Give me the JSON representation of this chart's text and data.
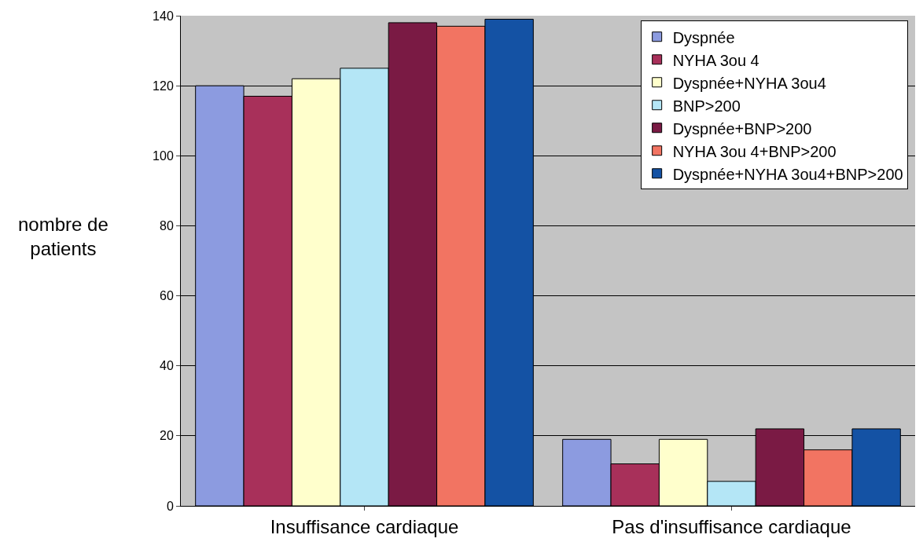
{
  "chart_data": {
    "type": "bar",
    "ylabel": "nombre de patients",
    "categories": [
      "Insuffisance cardiaque",
      "Pas d'insuffisance cardiaque"
    ],
    "series": [
      {
        "name": "Dyspnée",
        "color": "#8c9be0",
        "values": [
          120,
          19
        ]
      },
      {
        "name": "NYHA 3ou 4",
        "color": "#a8305a",
        "values": [
          117,
          12
        ]
      },
      {
        "name": "Dyspnée+NYHA 3ou4",
        "color": "#ffffcc",
        "values": [
          122,
          19
        ]
      },
      {
        "name": "BNP>200",
        "color": "#b4e6f6",
        "values": [
          125,
          7
        ]
      },
      {
        "name": "Dyspnée+BNP>200",
        "color": "#7a1a44",
        "values": [
          138,
          22
        ]
      },
      {
        "name": "NYHA 3ou 4+BNP>200",
        "color": "#f27462",
        "values": [
          137,
          16
        ]
      },
      {
        "name": "Dyspnée+NYHA 3ou4+BNP>200",
        "color": "#1452a4",
        "values": [
          139,
          22
        ]
      }
    ],
    "ylim": [
      0,
      140
    ],
    "yticks": [
      0,
      20,
      40,
      60,
      80,
      100,
      120,
      140
    ],
    "grid": "y",
    "legend": "top right"
  }
}
